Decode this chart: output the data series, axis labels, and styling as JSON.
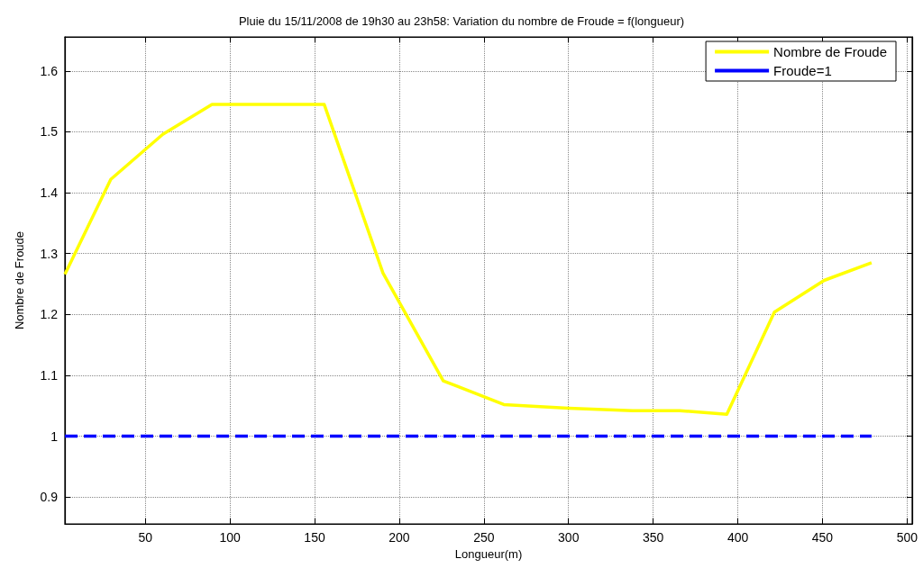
{
  "chart_data": {
    "type": "line",
    "title": "Pluie du 15/11/2008 de 19h30 au 23h58: Variation du nombre de Froude = f(longueur)",
    "xlabel": "Longueur(m)",
    "ylabel": "Nombre de Froude",
    "xlim": [
      2.5,
      503
    ],
    "xticks": [
      50,
      100,
      150,
      200,
      250,
      300,
      350,
      400,
      450,
      500
    ],
    "ylim": [
      0.856,
      1.656
    ],
    "yticks": [
      0.9,
      1,
      1.1,
      1.2,
      1.3,
      1.4,
      1.5,
      1.6
    ],
    "grid": true,
    "legend": "top right",
    "series": [
      {
        "name": "Nombre de Froude",
        "color": "#ffff00",
        "line_style": "solid",
        "x": [
          2.5,
          29.6,
          60.3,
          89.4,
          155.7,
          190.4,
          226,
          261.8,
          300,
          338,
          365.7,
          393.5,
          421.6,
          451,
          479
        ],
        "values": [
          1.266,
          1.422,
          1.496,
          1.545,
          1.545,
          1.268,
          1.091,
          1.052,
          1.046,
          1.042,
          1.042,
          1.036,
          1.204,
          1.256,
          1.285
        ]
      },
      {
        "name": "Froude=1",
        "color": "#0000ff",
        "line_style": "dashed",
        "x": [
          2.5,
          479
        ],
        "values": [
          1,
          1
        ]
      }
    ]
  }
}
